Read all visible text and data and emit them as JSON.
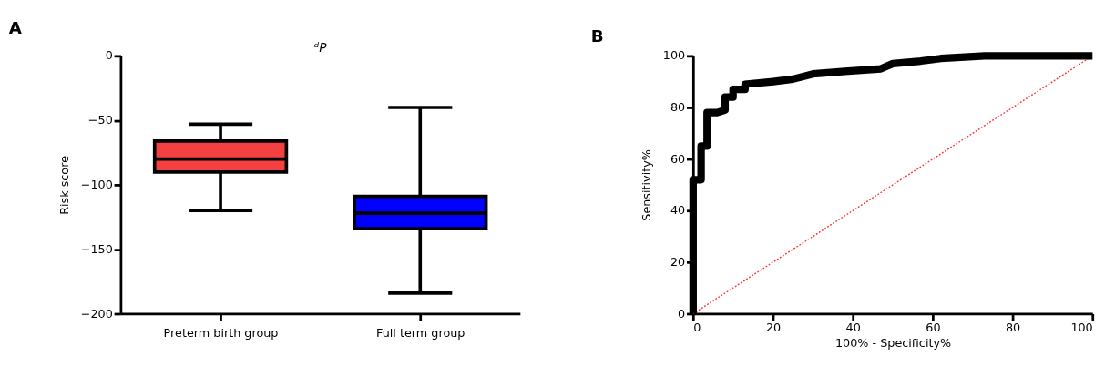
{
  "chart_data": [
    {
      "type": "box",
      "title": "A",
      "ylabel": "Risk score",
      "categories": [
        "Preterm birth group",
        "Full term group"
      ],
      "boxes": [
        {
          "low": -120,
          "q1": -90,
          "median": -80,
          "q3": -66,
          "high": -53
        },
        {
          "low": -184,
          "q1": -134,
          "median": -122,
          "q3": -109,
          "high": -40
        }
      ],
      "colors": [
        "#f44040",
        "#0000ff"
      ],
      "ylim": [
        -200,
        0
      ],
      "yticks": [
        -200,
        -150,
        -100,
        -50,
        0
      ],
      "annotations": [
        "ᵈP"
      ],
      "grid": false,
      "legend": false
    },
    {
      "type": "line",
      "title": "B",
      "xlabel": "100% - Specificity%",
      "ylabel": "Sensitivity%",
      "series": [
        {
          "color": "#000000",
          "x": [
            0,
            0,
            2,
            2,
            3.5,
            3.5,
            6,
            8,
            8,
            10,
            10,
            13,
            13,
            20,
            25,
            30,
            38,
            47,
            50,
            57,
            62,
            73,
            100
          ],
          "values": [
            0,
            52,
            52,
            65,
            65,
            78,
            78,
            79,
            84,
            84,
            87,
            87,
            89,
            90,
            91,
            93,
            94,
            95,
            97,
            98,
            99,
            100,
            100
          ],
          "line_style": "solid"
        },
        {
          "color": "#ff3030",
          "x": [
            0,
            100
          ],
          "values": [
            0,
            100
          ],
          "line_style": "dotted"
        }
      ],
      "xlim": [
        0,
        100
      ],
      "xticks": [
        0,
        20,
        40,
        60,
        80,
        100
      ],
      "ylim": [
        0,
        100
      ],
      "yticks": [
        0,
        20,
        40,
        60,
        80,
        100
      ],
      "grid": false,
      "legend": false,
      "marker": "none"
    }
  ]
}
